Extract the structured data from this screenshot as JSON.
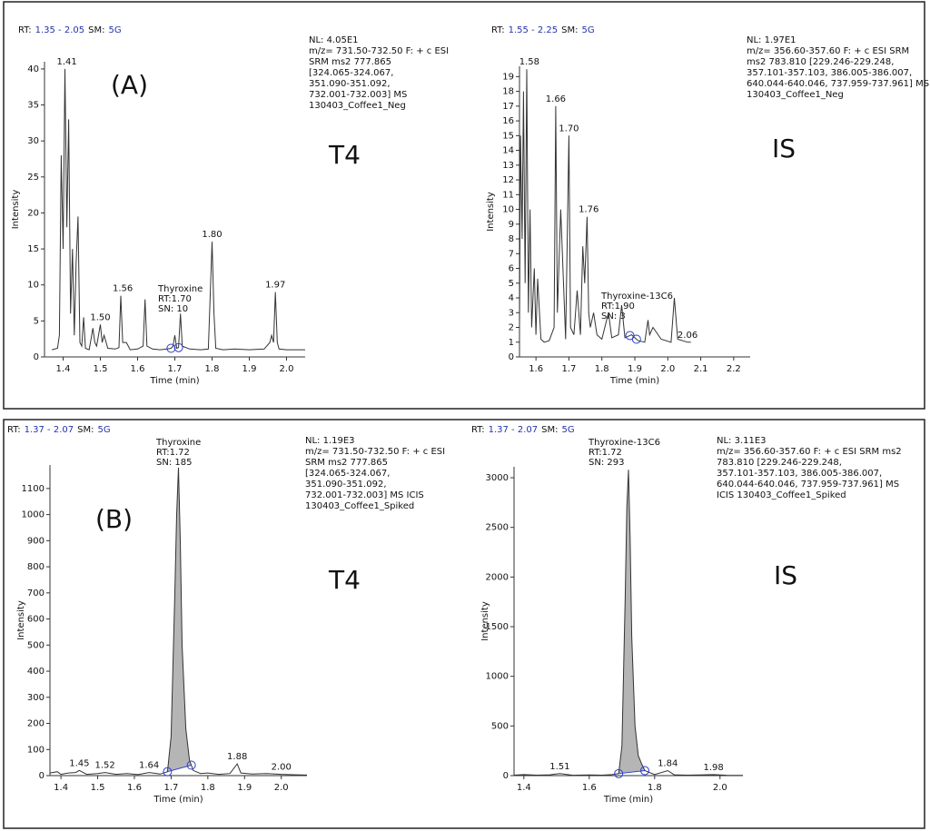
{
  "chart_data": [
    {
      "type": "line",
      "color": "#333333",
      "header": {
        "rt_label": "RT:",
        "rt_range": "1.35 - 2.05",
        "sm_label": "SM:",
        "sm_value": "5G"
      },
      "info": [
        "NL: 4.05E1",
        "m/z= 731.50-732.50 F: + c ESI",
        "SRM ms2 777.865",
        "[324.065-324.067,",
        "351.090-351.092,",
        "732.001-732.003]  MS",
        "130403_Coffee1_Neg"
      ],
      "panel_label": "(A)",
      "analyte_label": "T4",
      "compound": [
        "Thyroxine",
        "RT:1.70",
        "SN: 10"
      ],
      "x_label": "Time (min)",
      "y_label": "Intensity",
      "xlim": [
        1.35,
        2.05
      ],
      "ylim": [
        0,
        41
      ],
      "xticks": [
        1.4,
        1.5,
        1.6,
        1.7,
        1.8,
        1.9,
        {
          "value": 2,
          "label": "2.0"
        }
      ],
      "yticks": [
        0,
        5,
        10,
        15,
        20,
        25,
        30,
        35,
        40
      ],
      "x": [
        1.37,
        1.385,
        1.39,
        1.395,
        1.4,
        1.405,
        1.41,
        1.415,
        1.42,
        1.425,
        1.43,
        1.435,
        1.44,
        1.445,
        1.45,
        1.455,
        1.46,
        1.47,
        1.48,
        1.485,
        1.49,
        1.5,
        1.505,
        1.51,
        1.52,
        1.54,
        1.55,
        1.555,
        1.56,
        1.57,
        1.58,
        1.6,
        1.615,
        1.62,
        1.625,
        1.64,
        1.66,
        1.68,
        1.69,
        1.695,
        1.7,
        1.705,
        1.71,
        1.715,
        1.72,
        1.74,
        1.77,
        1.79,
        1.8,
        1.805,
        1.81,
        1.83,
        1.86,
        1.9,
        1.94,
        1.955,
        1.96,
        1.965,
        1.97,
        1.975,
        1.98,
        2.0,
        2.05
      ],
      "values": [
        1,
        1.2,
        3,
        28,
        15,
        40,
        18,
        33,
        6,
        15,
        3,
        13,
        19.5,
        2,
        1.5,
        5.5,
        1.2,
        1,
        4,
        2,
        1.5,
        4.5,
        2,
        3,
        1.2,
        1.1,
        1.3,
        8.5,
        2,
        2,
        1,
        1.1,
        1.5,
        8,
        1.5,
        1.1,
        1,
        1.1,
        1.2,
        1.5,
        3,
        1.2,
        1.3,
        6,
        1.5,
        1.1,
        1,
        1.1,
        16,
        6,
        1.2,
        1,
        1.1,
        1,
        1.1,
        2,
        3,
        2,
        9,
        2,
        1.1,
        1,
        1
      ],
      "peaks": [
        {
          "value": 1.41,
          "label": "1.41"
        },
        {
          "value": 1.5,
          "label": "1.50"
        },
        {
          "value": 1.56,
          "label": "1.56"
        },
        {
          "value": 1.8,
          "label": "1.80"
        },
        {
          "value": 1.97,
          "label": "1.97"
        }
      ],
      "integration_bounds": [
        1.69,
        1.71
      ],
      "shade": false
    },
    {
      "type": "line",
      "color": "#333333",
      "header": {
        "rt_label": "RT:",
        "rt_range": "1.55 - 2.25",
        "sm_label": "SM:",
        "sm_value": "5G"
      },
      "info": [
        "NL: 1.97E1",
        "m/z= 356.60-357.60 F: + c ESI SRM",
        "ms2 783.810 [229.246-229.248,",
        "357.101-357.103, 386.005-386.007,",
        "640.044-640.046, 737.959-737.961]  MS",
        "130403_Coffee1_Neg"
      ],
      "analyte_label": "IS",
      "compound": [
        "Thyroxine-13C6",
        "RT:1.90",
        "SN: 3"
      ],
      "x_label": "Time (min)",
      "y_label": "Intensity",
      "xlim": [
        1.55,
        2.25
      ],
      "ylim": [
        0,
        19.7
      ],
      "xticks": [
        1.6,
        1.7,
        1.8,
        1.9,
        {
          "value": 2,
          "label": "2.0"
        },
        2.1,
        2.2
      ],
      "yticks": [
        0,
        1,
        2,
        3,
        4,
        5,
        6,
        7,
        8,
        9,
        10,
        11,
        12,
        13,
        14,
        15,
        16,
        17,
        18,
        19
      ],
      "x": [
        1.55,
        1.553,
        1.558,
        1.562,
        1.567,
        1.572,
        1.577,
        1.582,
        1.587,
        1.595,
        1.6,
        1.605,
        1.615,
        1.625,
        1.64,
        1.655,
        1.66,
        1.665,
        1.675,
        1.69,
        1.7,
        1.705,
        1.715,
        1.725,
        1.735,
        1.742,
        1.748,
        1.755,
        1.76,
        1.765,
        1.775,
        1.785,
        1.8,
        1.82,
        1.83,
        1.85,
        1.86,
        1.87,
        1.89,
        1.91,
        1.93,
        1.94,
        1.945,
        1.955,
        1.98,
        2.01,
        2.02,
        2.03,
        2.06,
        2.07
      ],
      "values": [
        2,
        15,
        8,
        18,
        5,
        19.5,
        3,
        10,
        2,
        6,
        1.5,
        5.3,
        1.2,
        1,
        1.1,
        2,
        17,
        3,
        10,
        1.2,
        15,
        2,
        1.5,
        4.5,
        1.5,
        7.5,
        5,
        9.5,
        3,
        2,
        3,
        1.5,
        1.2,
        3,
        1.3,
        1.5,
        3.5,
        1.3,
        1.5,
        1.1,
        1,
        2.5,
        1.5,
        2,
        1.2,
        1,
        4,
        1.2,
        1,
        1
      ],
      "peaks": [
        {
          "value": 1.58,
          "label": "1.58"
        },
        {
          "value": 1.66,
          "label": "1.66"
        },
        {
          "value": 1.7,
          "label": "1.70"
        },
        {
          "value": 1.76,
          "label": "1.76"
        },
        {
          "value": 2.06,
          "label": "2.06"
        }
      ],
      "integration_bounds": [
        1.885,
        1.905
      ],
      "shade": false
    },
    {
      "type": "line",
      "color": "#333333",
      "header": {
        "rt_label": "RT:",
        "rt_range": "1.37 - 2.07",
        "sm_label": "SM:",
        "sm_value": "5G"
      },
      "info": [
        "NL: 1.19E3",
        "m/z= 731.50-732.50 F: + c ESI",
        "SRM ms2 777.865",
        "[324.065-324.067,",
        "351.090-351.092,",
        "732.001-732.003]  MS  ICIS",
        "130403_Coffee1_Spiked"
      ],
      "panel_label": "(B)",
      "analyte_label": "T4",
      "compound": [
        "Thyroxine",
        "RT:1.72",
        "SN: 185"
      ],
      "x_label": "Time (min)",
      "y_label": "Intensity",
      "xlim": [
        1.37,
        2.07
      ],
      "ylim": [
        0,
        1190
      ],
      "xticks": [
        1.4,
        1.5,
        1.6,
        1.7,
        1.8,
        1.9,
        {
          "value": 2,
          "label": "2.0"
        }
      ],
      "yticks": [
        0,
        100,
        200,
        300,
        400,
        500,
        600,
        700,
        800,
        900,
        1000,
        1100
      ],
      "x": [
        1.37,
        1.39,
        1.4,
        1.42,
        1.44,
        1.45,
        1.47,
        1.5,
        1.52,
        1.55,
        1.58,
        1.61,
        1.64,
        1.67,
        1.69,
        1.7,
        1.71,
        1.715,
        1.72,
        1.725,
        1.73,
        1.74,
        1.75,
        1.76,
        1.78,
        1.8,
        1.83,
        1.86,
        1.88,
        1.89,
        1.92,
        1.96,
        2.0,
        2.04,
        2.07
      ],
      "values": [
        10,
        15,
        5,
        10,
        12,
        20,
        5,
        8,
        12,
        5,
        8,
        4,
        12,
        6,
        15,
        150,
        700,
        1000,
        1180,
        900,
        500,
        180,
        60,
        20,
        8,
        10,
        5,
        8,
        45,
        10,
        6,
        8,
        5,
        3,
        2
      ],
      "peaks": [
        {
          "value": 1.45,
          "label": "1.45"
        },
        {
          "value": 1.52,
          "label": "1.52"
        },
        {
          "value": 1.64,
          "label": "1.64"
        },
        {
          "value": 1.88,
          "label": "1.88"
        },
        {
          "value": 2,
          "label": "2.00"
        }
      ],
      "integration_bounds": [
        1.69,
        1.755
      ],
      "shade": true
    },
    {
      "type": "line",
      "color": "#333333",
      "header": {
        "rt_label": "RT:",
        "rt_range": "1.37 - 2.07",
        "sm_label": "SM:",
        "sm_value": "5G"
      },
      "info": [
        "NL: 3.11E3",
        "m/z= 356.60-357.60 F: + c ESI SRM ms2",
        "783.810 [229.246-229.248,",
        "357.101-357.103, 386.005-386.007,",
        "640.044-640.046, 737.959-737.961]  MS",
        "ICIS 130403_Coffee1_Spiked"
      ],
      "analyte_label": "IS",
      "compound": [
        "Thyroxine-13C6",
        "RT:1.72",
        "SN: 293"
      ],
      "x_label": "Time (min)",
      "y_label": "Intensity",
      "xlim": [
        1.37,
        2.07
      ],
      "ylim": [
        0,
        3110
      ],
      "xticks": [
        1.4,
        1.6,
        1.8,
        {
          "value": 2,
          "label": "2.0"
        }
      ],
      "yticks": [
        0,
        500,
        1000,
        1500,
        2000,
        2500,
        3000
      ],
      "x": [
        1.37,
        1.4,
        1.44,
        1.48,
        1.51,
        1.55,
        1.6,
        1.64,
        1.67,
        1.69,
        1.7,
        1.71,
        1.715,
        1.72,
        1.725,
        1.73,
        1.74,
        1.75,
        1.76,
        1.77,
        1.8,
        1.84,
        1.86,
        1.9,
        1.94,
        1.98,
        2.02,
        2.07
      ],
      "values": [
        5,
        10,
        5,
        8,
        20,
        4,
        6,
        5,
        10,
        20,
        300,
        1800,
        2700,
        3080,
        2400,
        1400,
        500,
        200,
        120,
        50,
        10,
        50,
        8,
        5,
        6,
        10,
        4,
        3
      ],
      "peaks": [
        {
          "value": 1.51,
          "label": "1.51"
        },
        {
          "value": 1.84,
          "label": "1.84"
        },
        {
          "value": 1.98,
          "label": "1.98"
        }
      ],
      "integration_bounds": [
        1.69,
        1.77
      ],
      "shade": true
    }
  ]
}
